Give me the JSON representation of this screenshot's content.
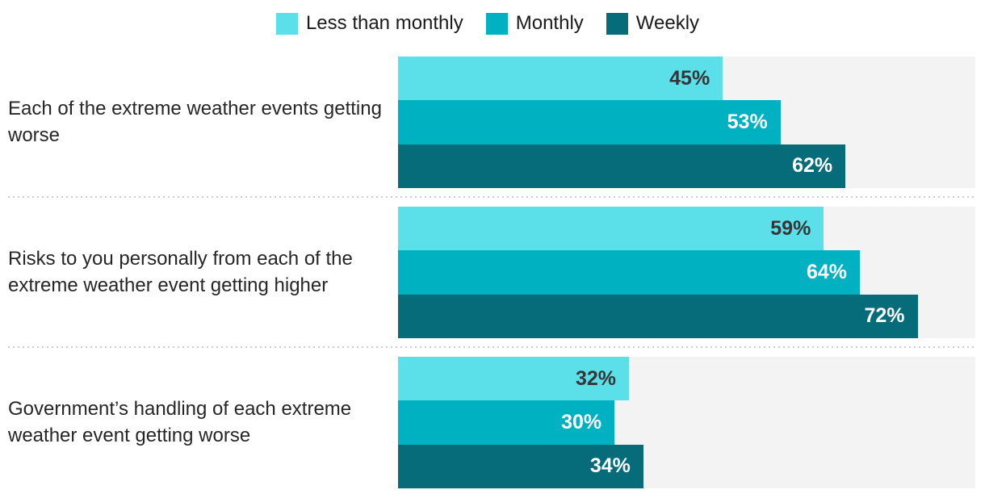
{
  "chart_data": {
    "type": "bar",
    "orientation": "horizontal",
    "title": "",
    "categories": [
      "Each of the extreme weather events getting worse",
      "Risks to you personally from each of the extreme weather event getting higher",
      "Government’s handling of each extreme weather event getting worse"
    ],
    "series": [
      {
        "name": "Less than monthly",
        "color": "#5BE0E9",
        "label_color": "#363636",
        "values": [
          45,
          59,
          32
        ]
      },
      {
        "name": "Monthly",
        "color": "#00B2C1",
        "label_color": "#FFFFFF",
        "values": [
          53,
          64,
          30
        ]
      },
      {
        "name": "Weekly",
        "color": "#076C7A",
        "label_color": "#FFFFFF",
        "values": [
          62,
          72,
          34
        ]
      }
    ],
    "value_suffix": "%",
    "xlim": [
      0,
      80
    ],
    "grid": false,
    "legend_position": "top",
    "track_color": "#F3F3F3",
    "divider_color": "#CDCDCD"
  }
}
